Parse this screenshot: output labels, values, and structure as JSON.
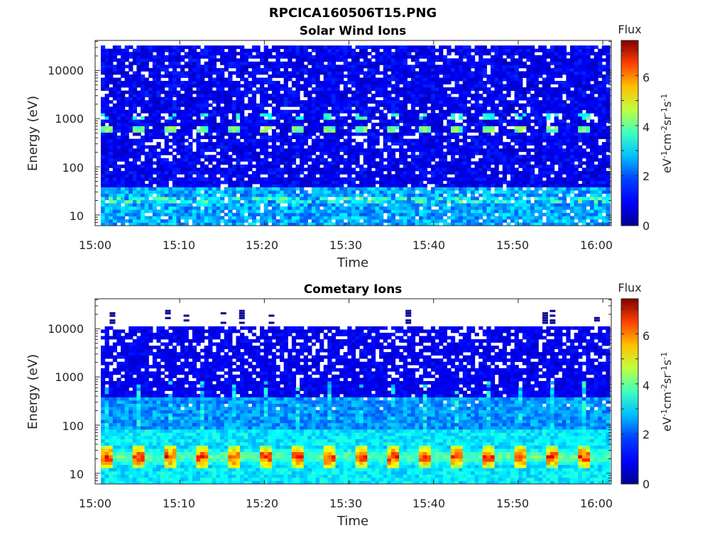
{
  "figure": {
    "title": "RPCICA160506T15.PNG"
  },
  "colormap": [
    "#00008f",
    "#0000ff",
    "#0080ff",
    "#00ffff",
    "#80ff80",
    "#ffff00",
    "#ff8000",
    "#ff0000",
    "#800000"
  ],
  "chart_data": [
    {
      "type": "heatmap",
      "title": "Solar Wind Ions",
      "xlabel": "Time",
      "ylabel": "Energy (eV)",
      "x_ticks": [
        "15:00",
        "15:10",
        "15:20",
        "15:30",
        "15:40",
        "15:50",
        "16:00"
      ],
      "xlim": [
        "15:00",
        "16:01"
      ],
      "y_ticks": [
        "10",
        "100",
        "1000",
        "10000"
      ],
      "ylim": [
        6,
        42000
      ],
      "y_scale": "log",
      "colorbar": {
        "title": "Flux",
        "label": "eV-1cm-2sr-1s-1",
        "ticks": [
          "0",
          "2",
          "4",
          "6"
        ],
        "range": [
          0,
          7.4
        ]
      },
      "features": [
        {
          "energy_eV": 600,
          "flux": 4.0,
          "note": "periodic solar wind proton peak"
        },
        {
          "energy_eV": 1150,
          "flux": 3.5,
          "note": "alpha particle peak"
        },
        {
          "energy_eV": 20,
          "flux": 3.8,
          "note": "low energy band"
        }
      ]
    },
    {
      "type": "heatmap",
      "title": "Cometary Ions",
      "xlabel": "Time",
      "ylabel": "Energy (eV)",
      "x_ticks": [
        "15:00",
        "15:10",
        "15:20",
        "15:30",
        "15:40",
        "15:50",
        "16:00"
      ],
      "xlim": [
        "15:00",
        "16:01"
      ],
      "y_ticks": [
        "10",
        "100",
        "1000",
        "10000"
      ],
      "ylim": [
        6,
        42000
      ],
      "y_scale": "log",
      "colorbar": {
        "title": "Flux",
        "label": "eV-1cm-2sr-1s-1",
        "ticks": [
          "0",
          "2",
          "4",
          "6"
        ],
        "range": [
          0,
          7.4
        ]
      },
      "features": [
        {
          "energy_eV": 22,
          "flux": 6.3,
          "note": "periodic cometary ion peak"
        },
        {
          "energy_eV": 100,
          "flux": 2.8,
          "note": "intermittent streaks"
        },
        {
          "energy_eV": 11000,
          "flux": 0.5,
          "note": "upper cutoff"
        }
      ]
    }
  ]
}
